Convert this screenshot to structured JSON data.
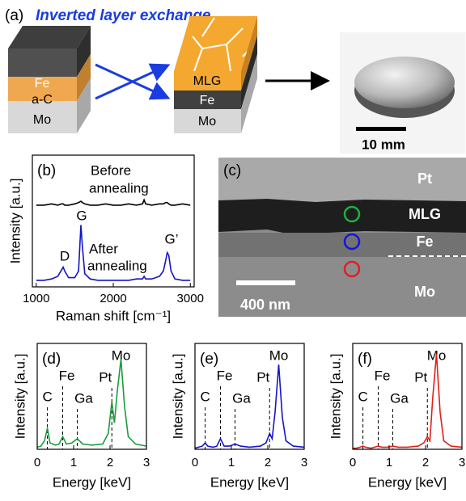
{
  "panel_a": {
    "label": "(a)",
    "title": "Inverted layer exchange",
    "left_stack": [
      "Fe",
      "a-C",
      "Mo"
    ],
    "right_stack": [
      "MLG",
      "Fe",
      "Mo"
    ],
    "scale_bar": "10 mm"
  },
  "panel_c": {
    "label": "(c)",
    "layers": [
      "Pt",
      "MLG",
      "Fe",
      "Mo"
    ],
    "scale_bar": "400 nm"
  },
  "chart_data": [
    {
      "type": "line",
      "panel_label": "(b)",
      "x_label": "Raman shift [cm⁻¹]",
      "y_label": "Intensity [a.u.]",
      "annotations": [
        "Before",
        "annealing",
        "After",
        "annealing",
        "D",
        "G",
        "G’"
      ],
      "xlim": [
        950,
        3050
      ],
      "xticks": [
        1000,
        2000,
        3000
      ],
      "ylim": [
        0,
        1
      ],
      "x": [
        1000,
        1100,
        1200,
        1280,
        1330,
        1350,
        1370,
        1420,
        1500,
        1550,
        1580,
        1600,
        1630,
        1700,
        1800,
        1900,
        2000,
        2100,
        2200,
        2300,
        2380,
        2400,
        2420,
        2500,
        2600,
        2650,
        2680,
        2700,
        2720,
        2750,
        2800,
        2900,
        3000
      ],
      "series": [
        {
          "color": "#000000",
          "values": [
            0.62,
            0.62,
            0.63,
            0.62,
            0.63,
            0.63,
            0.62,
            0.62,
            0.63,
            0.64,
            0.65,
            0.64,
            0.63,
            0.62,
            0.62,
            0.63,
            0.62,
            0.62,
            0.63,
            0.62,
            0.63,
            0.66,
            0.63,
            0.62,
            0.63,
            0.63,
            0.64,
            0.64,
            0.63,
            0.62,
            0.62,
            0.63,
            0.62
          ]
        },
        {
          "color": "#1414c8",
          "values": [
            0.05,
            0.05,
            0.06,
            0.08,
            0.13,
            0.15,
            0.12,
            0.07,
            0.07,
            0.12,
            0.47,
            0.3,
            0.1,
            0.06,
            0.05,
            0.05,
            0.05,
            0.05,
            0.05,
            0.06,
            0.06,
            0.08,
            0.06,
            0.06,
            0.08,
            0.12,
            0.2,
            0.26,
            0.24,
            0.12,
            0.06,
            0.05,
            0.05
          ]
        }
      ]
    },
    {
      "type": "line",
      "panel_label": "(d)",
      "x_label": "Energy [keV]",
      "y_label": "Intensity [a.u.]",
      "xlim": [
        0,
        3
      ],
      "xticks": [
        0,
        1,
        2,
        3
      ],
      "ylim": [
        0,
        1
      ],
      "markers": [
        {
          "text": "C",
          "x": 0.28,
          "dashed": true
        },
        {
          "text": "Fe",
          "x": 0.7,
          "dashed": true
        },
        {
          "text": "Ga",
          "x": 1.1,
          "dashed": true
        },
        {
          "text": "Pt",
          "x": 2.05,
          "dashed": true
        },
        {
          "text": "Mo",
          "x": 2.3,
          "dashed": false
        }
      ],
      "x": [
        0,
        0.1,
        0.2,
        0.28,
        0.35,
        0.5,
        0.6,
        0.7,
        0.8,
        0.95,
        1.1,
        1.25,
        1.5,
        1.8,
        1.95,
        2.05,
        2.12,
        2.2,
        2.3,
        2.4,
        2.5,
        2.7,
        3.0
      ],
      "series": [
        {
          "color": "#1a9c3a",
          "values": [
            0.02,
            0.03,
            0.08,
            0.2,
            0.06,
            0.04,
            0.05,
            0.12,
            0.05,
            0.06,
            0.1,
            0.05,
            0.04,
            0.05,
            0.15,
            0.45,
            0.25,
            0.55,
            0.85,
            0.4,
            0.12,
            0.05,
            0.03
          ]
        }
      ]
    },
    {
      "type": "line",
      "panel_label": "(e)",
      "x_label": "Energy [keV]",
      "y_label": "Intensity [a.u.]",
      "xlim": [
        0,
        3
      ],
      "xticks": [
        0,
        1,
        2,
        3
      ],
      "ylim": [
        0,
        1
      ],
      "markers": [
        {
          "text": "C",
          "x": 0.28,
          "dashed": true
        },
        {
          "text": "Fe",
          "x": 0.7,
          "dashed": true
        },
        {
          "text": "Ga",
          "x": 1.1,
          "dashed": true
        },
        {
          "text": "Pt",
          "x": 2.05,
          "dashed": true
        },
        {
          "text": "Mo",
          "x": 2.3,
          "dashed": false
        }
      ],
      "x": [
        0,
        0.1,
        0.2,
        0.28,
        0.35,
        0.5,
        0.6,
        0.7,
        0.8,
        0.95,
        1.1,
        1.25,
        1.5,
        1.8,
        1.95,
        2.05,
        2.12,
        2.2,
        2.3,
        2.4,
        2.5,
        2.7,
        3.0
      ],
      "series": [
        {
          "color": "#1414c8",
          "values": [
            0.01,
            0.02,
            0.03,
            0.06,
            0.03,
            0.02,
            0.03,
            0.1,
            0.03,
            0.03,
            0.05,
            0.03,
            0.02,
            0.03,
            0.06,
            0.15,
            0.1,
            0.35,
            0.8,
            0.3,
            0.08,
            0.03,
            0.02
          ]
        }
      ]
    },
    {
      "type": "line",
      "panel_label": "(f)",
      "x_label": "Energy [keV]",
      "y_label": "Intensity [a.u.]",
      "xlim": [
        0,
        3
      ],
      "xticks": [
        0,
        1,
        2,
        3
      ],
      "ylim": [
        0,
        1
      ],
      "markers": [
        {
          "text": "C",
          "x": 0.28,
          "dashed": true
        },
        {
          "text": "Fe",
          "x": 0.7,
          "dashed": true
        },
        {
          "text": "Ga",
          "x": 1.1,
          "dashed": true
        },
        {
          "text": "Pt",
          "x": 2.05,
          "dashed": true
        },
        {
          "text": "Mo",
          "x": 2.3,
          "dashed": false
        }
      ],
      "x": [
        0,
        0.1,
        0.2,
        0.28,
        0.35,
        0.5,
        0.6,
        0.7,
        0.8,
        0.95,
        1.1,
        1.25,
        1.5,
        1.8,
        1.95,
        2.05,
        2.12,
        2.2,
        2.3,
        2.4,
        2.5,
        2.7,
        3.0
      ],
      "series": [
        {
          "color": "#e0201a",
          "values": [
            0.01,
            0.01,
            0.02,
            0.03,
            0.02,
            0.01,
            0.02,
            0.03,
            0.02,
            0.02,
            0.03,
            0.02,
            0.02,
            0.03,
            0.06,
            0.12,
            0.08,
            0.5,
            0.9,
            0.35,
            0.08,
            0.03,
            0.02
          ]
        }
      ]
    }
  ]
}
